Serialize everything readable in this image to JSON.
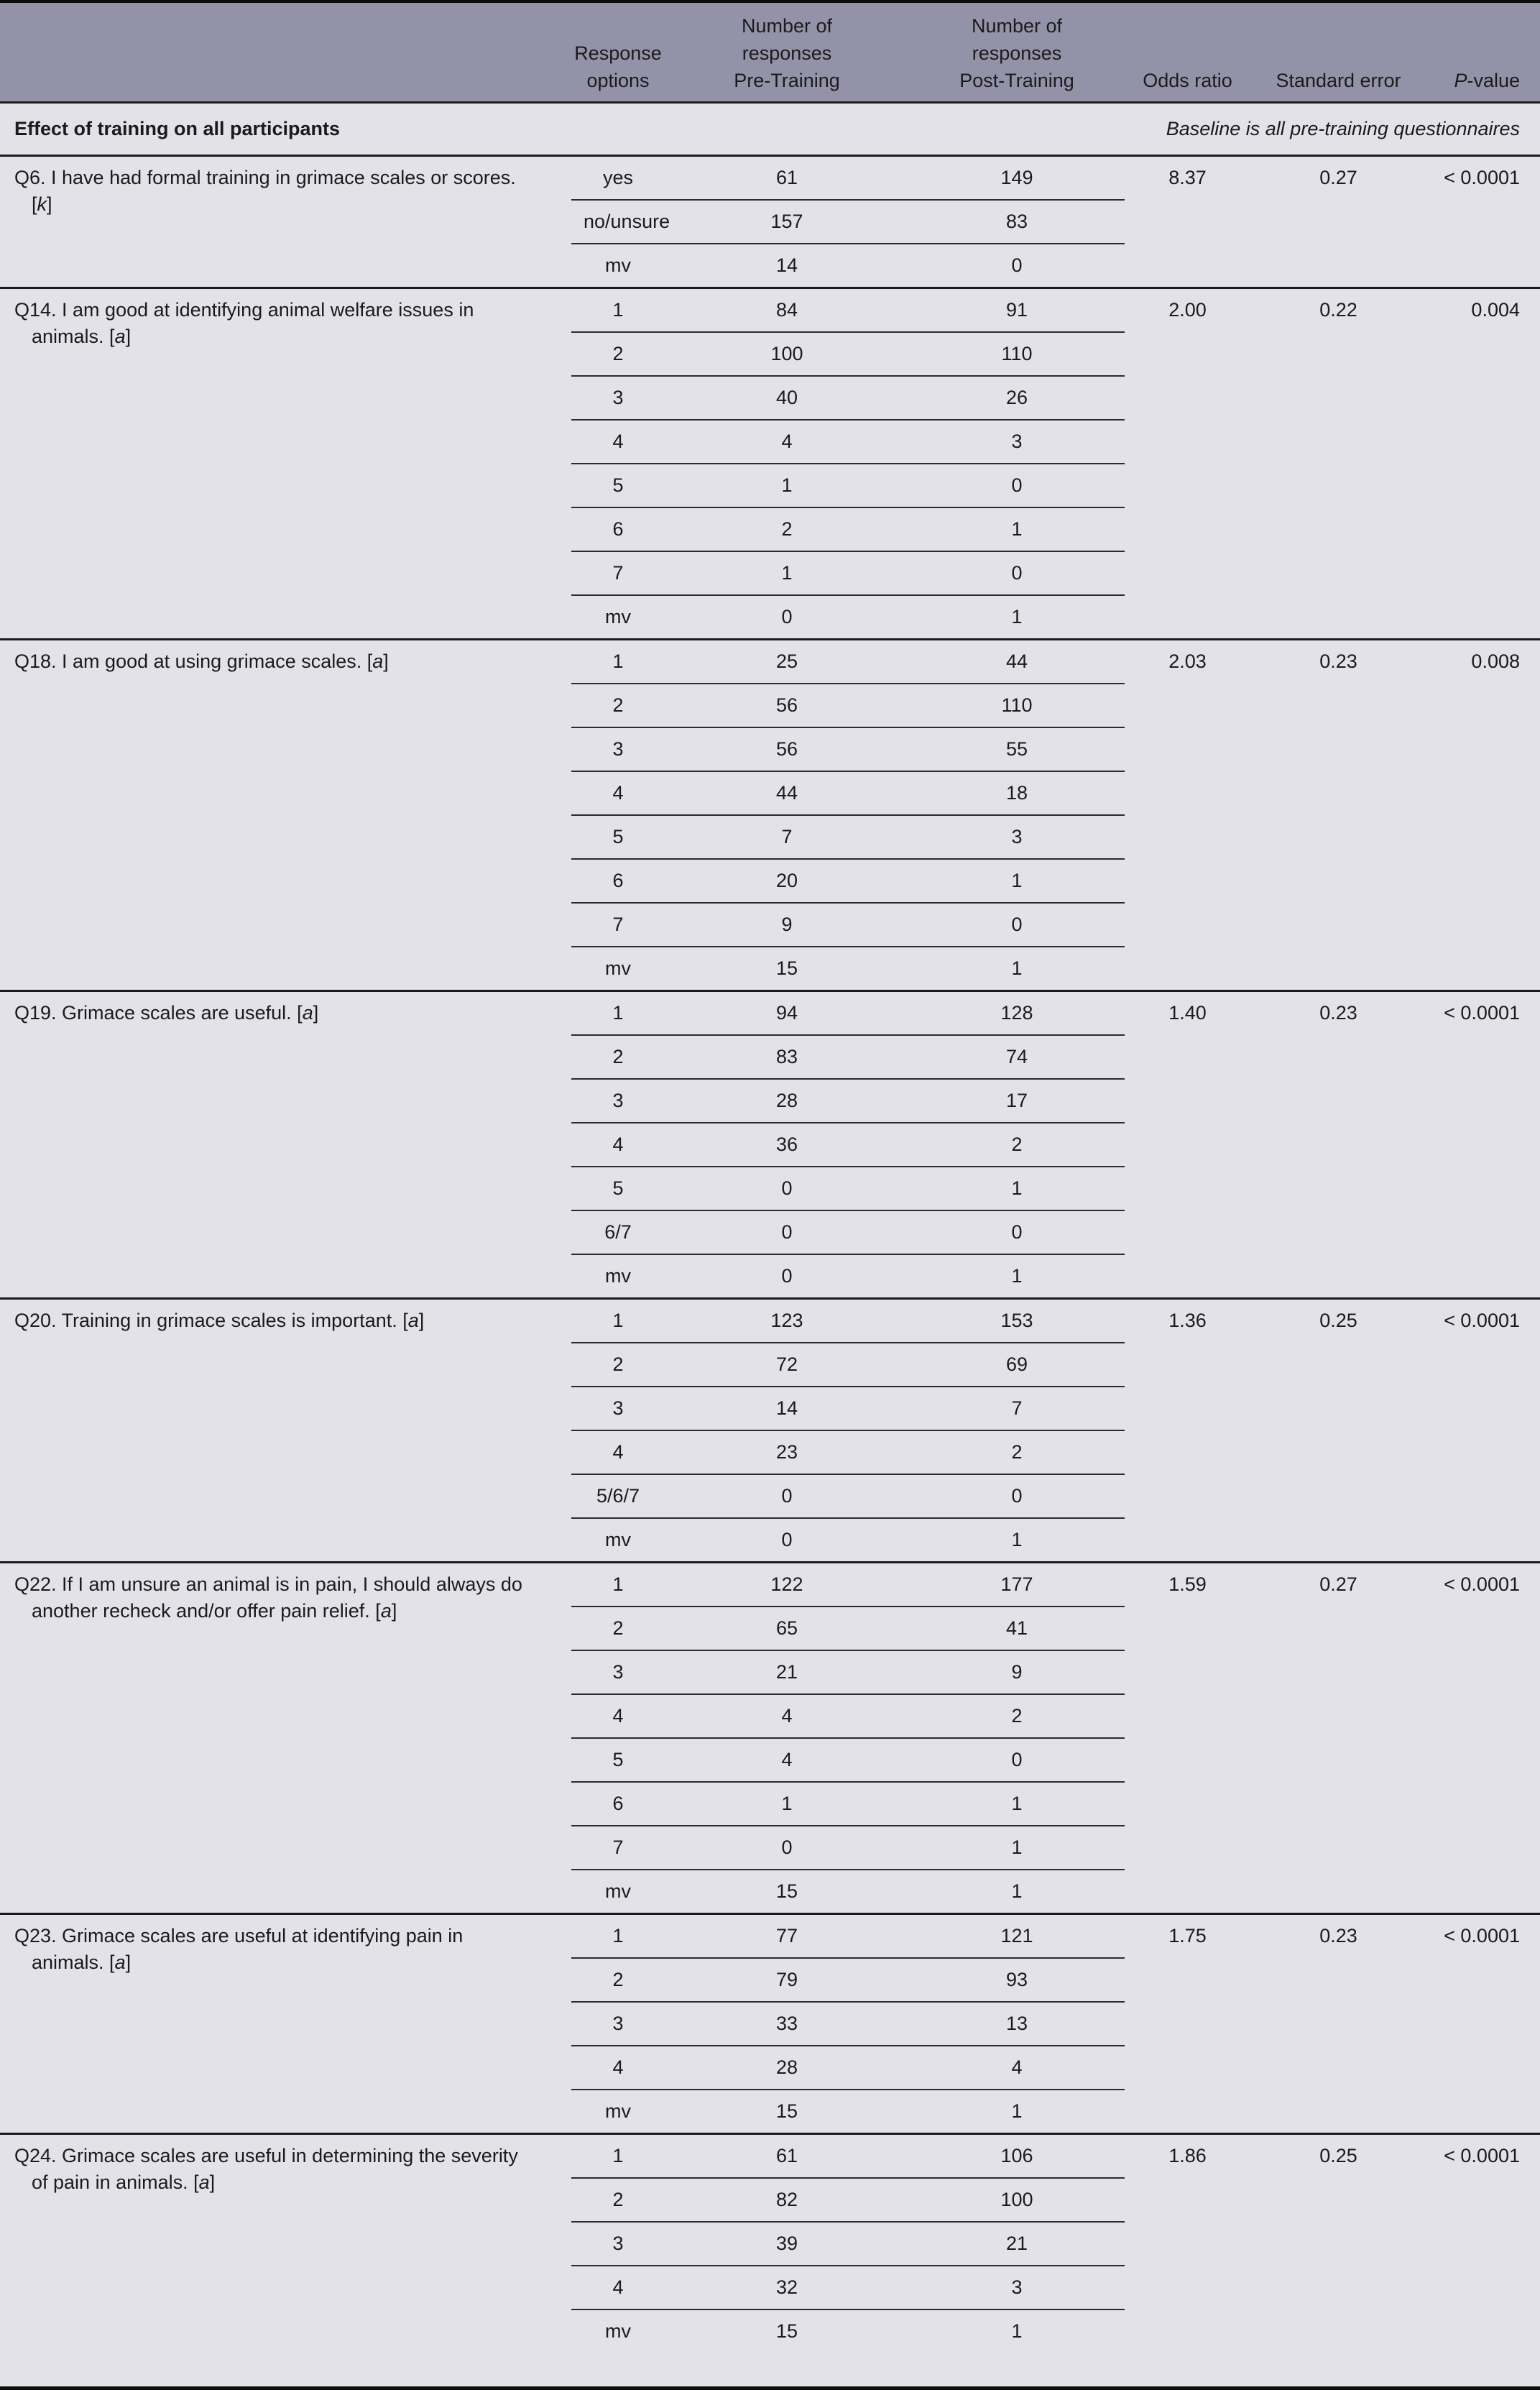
{
  "header": {
    "col_question": "",
    "col_response": [
      "Response",
      "options"
    ],
    "col_pre": [
      "Number of",
      "responses",
      "Pre-Training"
    ],
    "col_post": [
      "Number of",
      "responses",
      "Post-Training"
    ],
    "col_odds": "Odds ratio",
    "col_se": "Standard error",
    "col_p_italic": "P",
    "col_p_rest": "-value"
  },
  "section": {
    "label": "Effect of training on all participants",
    "note": "Baseline is all pre-training questionnaires"
  },
  "colors": {
    "header_bg": "#9492a9",
    "body_bg": "#e2e2e8",
    "rule": "#1b1b1b",
    "text": "#1b1b1b"
  },
  "questions": [
    {
      "text": "Q6. I have had formal training in grimace scales or scores.",
      "tag": "k",
      "odds_ratio": "8.37",
      "std_error": "0.27",
      "p_value": "< 0.0001",
      "rows": [
        {
          "option": "yes",
          "pre": "61",
          "post": "149"
        },
        {
          "option": "no/unsure",
          "pre": "157",
          "post": "83"
        },
        {
          "option": "mv",
          "pre": "14",
          "post": "0"
        }
      ]
    },
    {
      "text": "Q14. I am good at identifying animal welfare issues in animals.",
      "tag": "a",
      "odds_ratio": "2.00",
      "std_error": "0.22",
      "p_value": "0.004",
      "rows": [
        {
          "option": "1",
          "pre": "84",
          "post": "91"
        },
        {
          "option": "2",
          "pre": "100",
          "post": "110"
        },
        {
          "option": "3",
          "pre": "40",
          "post": "26"
        },
        {
          "option": "4",
          "pre": "4",
          "post": "3"
        },
        {
          "option": "5",
          "pre": "1",
          "post": "0"
        },
        {
          "option": "6",
          "pre": "2",
          "post": "1"
        },
        {
          "option": "7",
          "pre": "1",
          "post": "0"
        },
        {
          "option": "mv",
          "pre": "0",
          "post": "1"
        }
      ]
    },
    {
      "text": "Q18. I am good at using grimace scales.",
      "tag": "a",
      "odds_ratio": "2.03",
      "std_error": "0.23",
      "p_value": "0.008",
      "rows": [
        {
          "option": "1",
          "pre": "25",
          "post": "44"
        },
        {
          "option": "2",
          "pre": "56",
          "post": "110"
        },
        {
          "option": "3",
          "pre": "56",
          "post": "55"
        },
        {
          "option": "4",
          "pre": "44",
          "post": "18"
        },
        {
          "option": "5",
          "pre": "7",
          "post": "3"
        },
        {
          "option": "6",
          "pre": "20",
          "post": "1"
        },
        {
          "option": "7",
          "pre": "9",
          "post": "0"
        },
        {
          "option": "mv",
          "pre": "15",
          "post": "1"
        }
      ]
    },
    {
      "text": "Q19. Grimace scales are useful.",
      "tag": "a",
      "odds_ratio": "1.40",
      "std_error": "0.23",
      "p_value": "< 0.0001",
      "rows": [
        {
          "option": "1",
          "pre": "94",
          "post": "128"
        },
        {
          "option": "2",
          "pre": "83",
          "post": "74"
        },
        {
          "option": "3",
          "pre": "28",
          "post": "17"
        },
        {
          "option": "4",
          "pre": "36",
          "post": "2"
        },
        {
          "option": "5",
          "pre": "0",
          "post": "1"
        },
        {
          "option": "6/7",
          "pre": "0",
          "post": "0"
        },
        {
          "option": "mv",
          "pre": "0",
          "post": "1"
        }
      ]
    },
    {
      "text": "Q20. Training in grimace scales is important.",
      "tag": "a",
      "odds_ratio": "1.36",
      "std_error": "0.25",
      "p_value": "< 0.0001",
      "rows": [
        {
          "option": "1",
          "pre": "123",
          "post": "153"
        },
        {
          "option": "2",
          "pre": "72",
          "post": "69"
        },
        {
          "option": "3",
          "pre": "14",
          "post": "7"
        },
        {
          "option": "4",
          "pre": "23",
          "post": "2"
        },
        {
          "option": "5/6/7",
          "pre": "0",
          "post": "0"
        },
        {
          "option": "mv",
          "pre": "0",
          "post": "1"
        }
      ]
    },
    {
      "text": "Q22. If I am unsure an animal is in pain, I should always do another recheck and/or offer pain relief.",
      "tag": "a",
      "odds_ratio": "1.59",
      "std_error": "0.27",
      "p_value": "< 0.0001",
      "rows": [
        {
          "option": "1",
          "pre": "122",
          "post": "177"
        },
        {
          "option": "2",
          "pre": "65",
          "post": "41"
        },
        {
          "option": "3",
          "pre": "21",
          "post": "9"
        },
        {
          "option": "4",
          "pre": "4",
          "post": "2"
        },
        {
          "option": "5",
          "pre": "4",
          "post": "0"
        },
        {
          "option": "6",
          "pre": "1",
          "post": "1"
        },
        {
          "option": "7",
          "pre": "0",
          "post": "1"
        },
        {
          "option": "mv",
          "pre": "15",
          "post": "1"
        }
      ]
    },
    {
      "text": "Q23. Grimace scales are useful at identifying pain in animals.",
      "tag": "a",
      "odds_ratio": "1.75",
      "std_error": "0.23",
      "p_value": "< 0.0001",
      "rows": [
        {
          "option": "1",
          "pre": "77",
          "post": "121"
        },
        {
          "option": "2",
          "pre": "79",
          "post": "93"
        },
        {
          "option": "3",
          "pre": "33",
          "post": "13"
        },
        {
          "option": "4",
          "pre": "28",
          "post": "4"
        },
        {
          "option": "mv",
          "pre": "15",
          "post": "1"
        }
      ]
    },
    {
      "text": "Q24. Grimace scales are useful in determining the severity of pain in animals.",
      "tag": "a",
      "odds_ratio": "1.86",
      "std_error": "0.25",
      "p_value": "< 0.0001",
      "rows": [
        {
          "option": "1",
          "pre": "61",
          "post": "106"
        },
        {
          "option": "2",
          "pre": "82",
          "post": "100"
        },
        {
          "option": "3",
          "pre": "39",
          "post": "21"
        },
        {
          "option": "4",
          "pre": "32",
          "post": "3"
        },
        {
          "option": "mv",
          "pre": "15",
          "post": "1"
        }
      ]
    }
  ]
}
